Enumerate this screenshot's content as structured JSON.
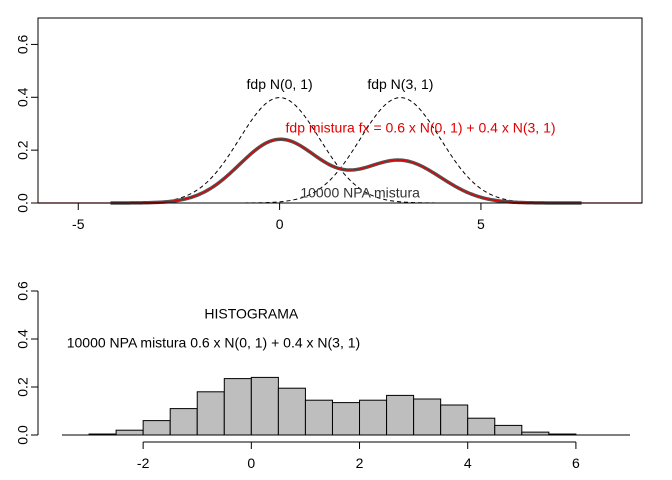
{
  "chart_data": [
    {
      "type": "line",
      "xlim": [
        -6,
        9
      ],
      "ylim": [
        0,
        0.7
      ],
      "xticks": [
        -5,
        0,
        5
      ],
      "yticks": [
        0.0,
        0.2,
        0.4,
        0.6
      ],
      "xtick_labels": [
        "-5",
        "0",
        "5"
      ],
      "ytick_labels": [
        "0.0",
        "0.2",
        "0.4",
        "0.6"
      ],
      "grid": false,
      "series": [
        {
          "kind": "pdf_normal",
          "style": "dashed",
          "color": "#000000",
          "mean": 0,
          "sd": 1,
          "weight": 1,
          "x_range": [
            -4,
            7.5
          ]
        },
        {
          "kind": "pdf_normal",
          "style": "dashed",
          "color": "#000000",
          "mean": 3,
          "sd": 1,
          "weight": 1,
          "x_range": [
            -4,
            7.5
          ]
        },
        {
          "kind": "mixture_empirical",
          "style": "solid-thick",
          "color": "#555555",
          "components": [
            {
              "mean": 0,
              "sd": 1,
              "weight": 0.6
            },
            {
              "mean": 3,
              "sd": 1,
              "weight": 0.4
            }
          ],
          "x_range": [
            -4.2,
            7.5
          ]
        },
        {
          "kind": "mixture_pdf",
          "style": "solid",
          "color": "#e00000",
          "components": [
            {
              "mean": 0,
              "sd": 1,
              "weight": 0.6
            },
            {
              "mean": 3,
              "sd": 1,
              "weight": 0.4
            }
          ],
          "x_range": [
            -6,
            9
          ]
        }
      ],
      "annotations": [
        {
          "text": "fdp N(0, 1)",
          "x": 0,
          "y": 0.445,
          "color": "#000000"
        },
        {
          "text": "fdp N(3, 1)",
          "x": 3,
          "y": 0.445,
          "color": "#000000"
        },
        {
          "text": "fdp mistura fx = 0.6 x N(0, 1) + 0.4 x N(3, 1)",
          "x": 3.5,
          "y": 0.28,
          "color": "#e00000"
        },
        {
          "text": "10000 NPA mistura",
          "x": 2,
          "y": 0.035,
          "color": "#333333"
        }
      ]
    },
    {
      "type": "bar",
      "subtype": "histogram",
      "xlim": [
        -3.5,
        7
      ],
      "ylim": [
        0,
        0.7
      ],
      "xticks": [
        -2,
        0,
        2,
        4,
        6
      ],
      "yticks": [
        0.0,
        0.2,
        0.4,
        0.6
      ],
      "xtick_labels": [
        "-2",
        "0",
        "2",
        "4",
        "6"
      ],
      "ytick_labels": [
        "0.0",
        "0.2",
        "0.4",
        "0.6"
      ],
      "bin_width": 0.5,
      "bin_start": -3,
      "values": [
        0.004,
        0.02,
        0.06,
        0.11,
        0.18,
        0.235,
        0.24,
        0.195,
        0.145,
        0.135,
        0.145,
        0.165,
        0.15,
        0.125,
        0.07,
        0.04,
        0.012,
        0.004
      ],
      "bar_color": "#bebebe",
      "edge_color": "#000000",
      "grid": false,
      "annotations": [
        {
          "text": "HISTOGRAMA",
          "x": 0,
          "y": 0.5,
          "color": "#000000"
        },
        {
          "text": "10000 NPA mistura 0.6 x N(0, 1) + 0.4 x N(3, 1)",
          "x": -0.7,
          "y": 0.38,
          "color": "#000000"
        }
      ]
    }
  ]
}
